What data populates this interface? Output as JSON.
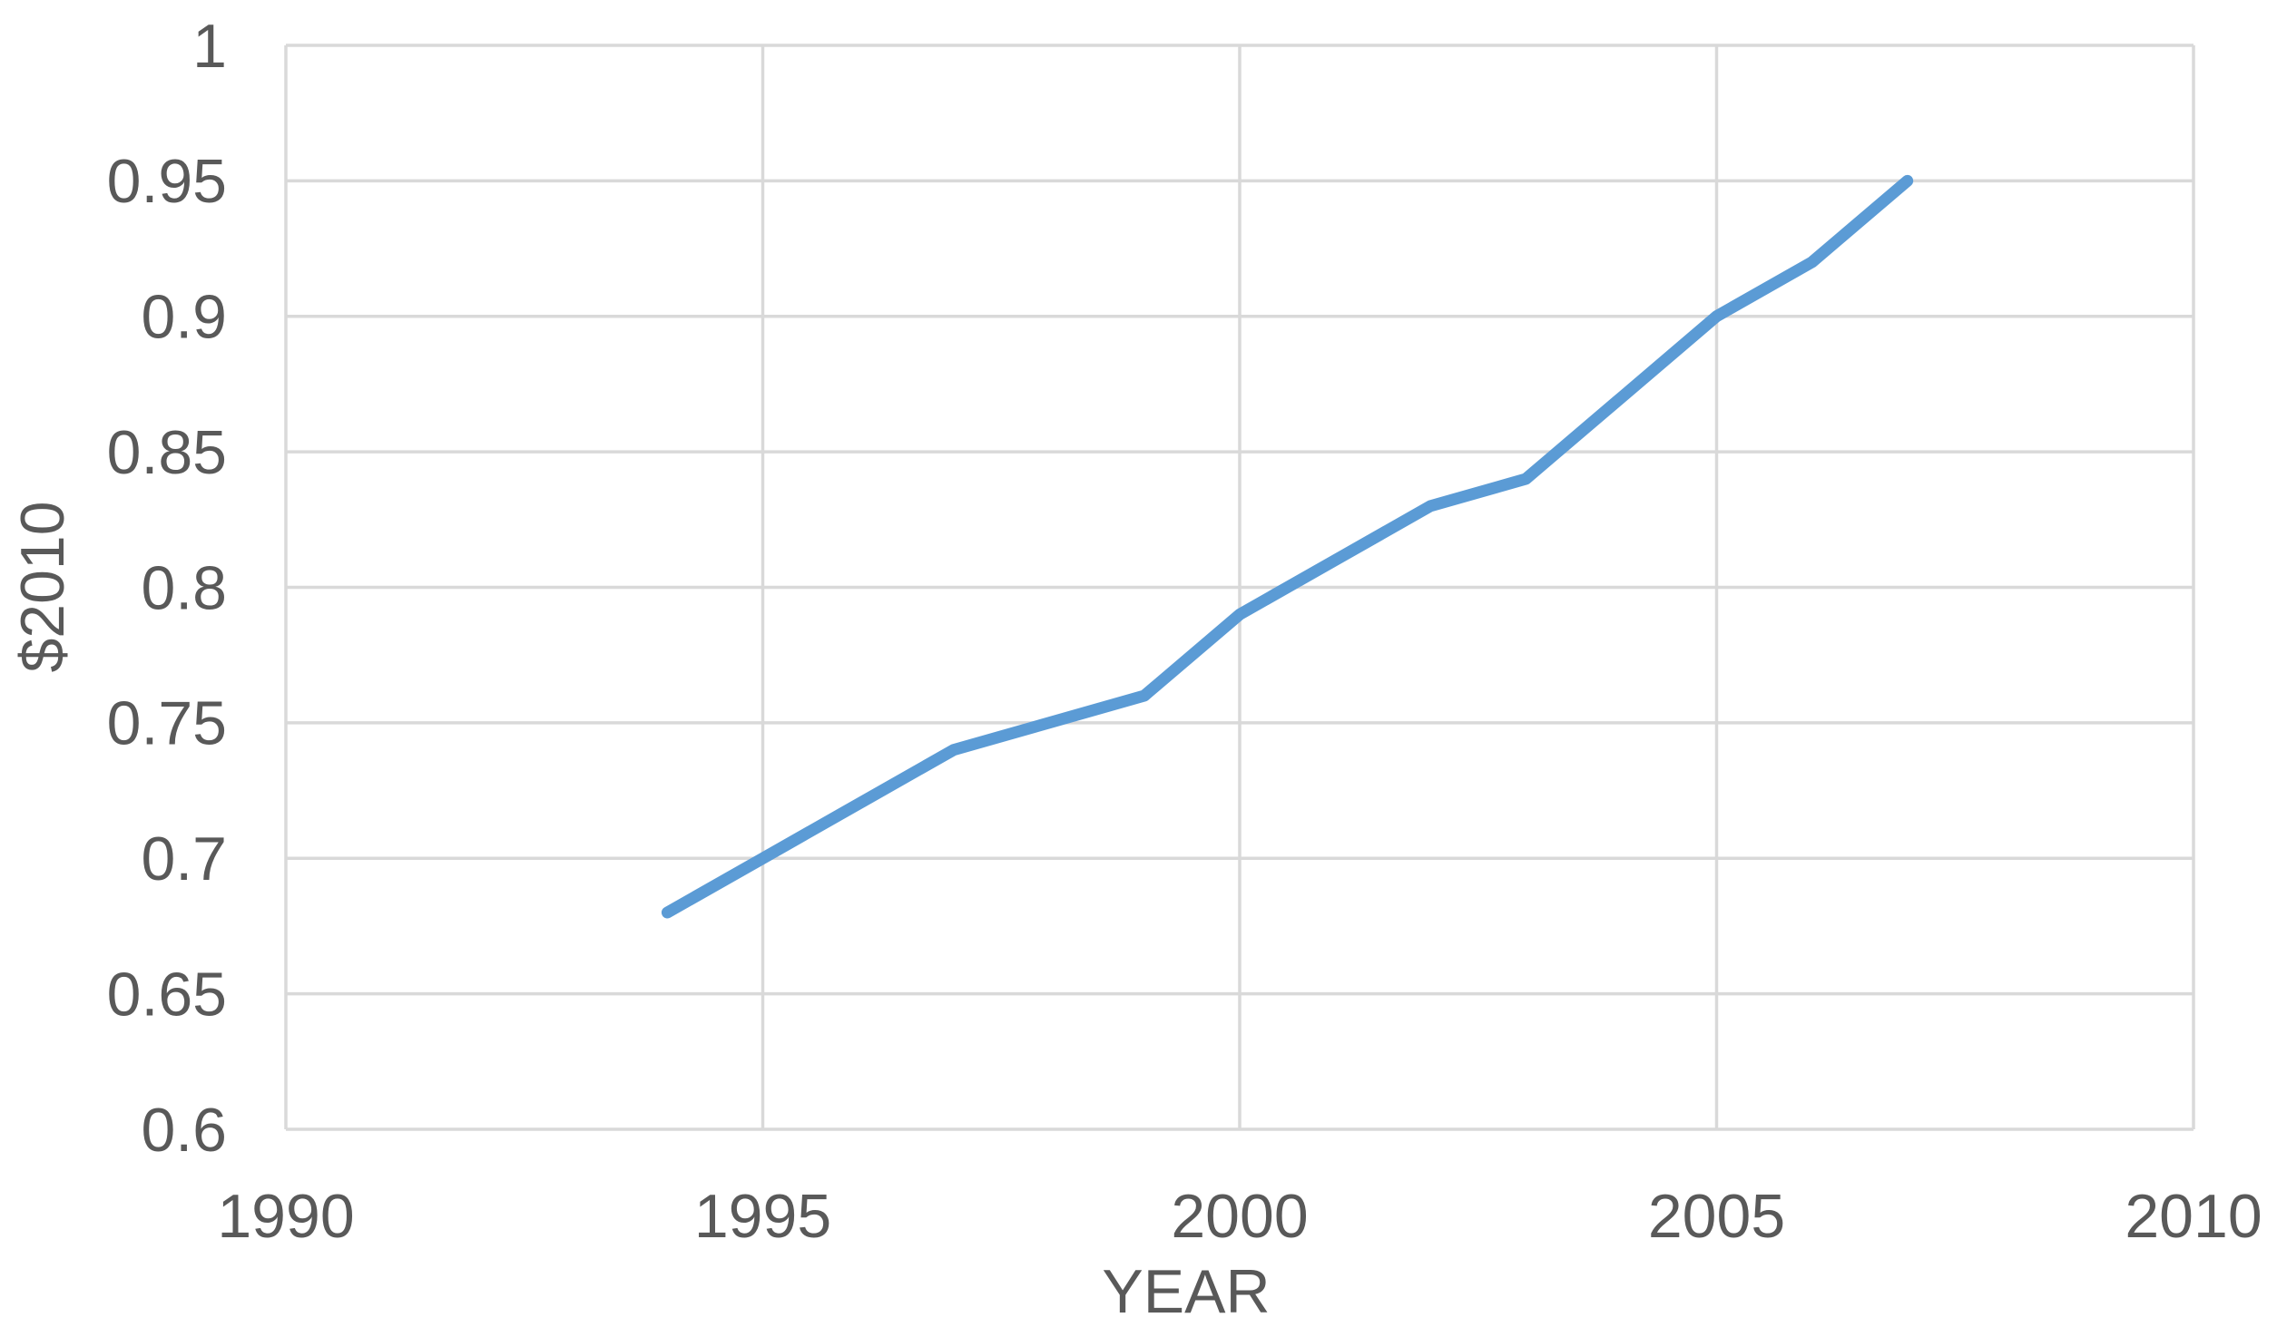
{
  "chart_data": {
    "type": "line",
    "title": "",
    "xlabel": "YEAR",
    "ylabel": "$2010",
    "x": [
      1994,
      1995,
      1996,
      1997,
      1998,
      1999,
      2000,
      2001,
      2002,
      2003,
      2004,
      2005,
      2006,
      2007
    ],
    "series": [
      {
        "name": "$2010",
        "values": [
          0.68,
          0.7,
          0.72,
          0.74,
          0.75,
          0.76,
          0.79,
          0.81,
          0.83,
          0.84,
          0.87,
          0.9,
          0.92,
          0.95
        ]
      }
    ],
    "xlim": [
      1990,
      2010
    ],
    "ylim": [
      0.6,
      1.0
    ],
    "xticks": [
      {
        "value": 1990,
        "label": "1990"
      },
      {
        "value": 1995,
        "label": "1995"
      },
      {
        "value": 2000,
        "label": "2000"
      },
      {
        "value": 2005,
        "label": "2005"
      },
      {
        "value": 2010,
        "label": "2010"
      }
    ],
    "yticks": [
      {
        "value": 0.6,
        "label": "0.6"
      },
      {
        "value": 0.65,
        "label": "0.65"
      },
      {
        "value": 0.7,
        "label": "0.7"
      },
      {
        "value": 0.75,
        "label": "0.75"
      },
      {
        "value": 0.8,
        "label": "0.8"
      },
      {
        "value": 0.85,
        "label": "0.85"
      },
      {
        "value": 0.9,
        "label": "0.9"
      },
      {
        "value": 0.95,
        "label": "0.95"
      },
      {
        "value": 1.0,
        "label": "1"
      }
    ],
    "grid": true,
    "legend": false,
    "colors": {
      "line": "#5B9BD5",
      "grid": "#D9D9D9",
      "text": "#595959",
      "background": "#FFFFFF"
    }
  }
}
